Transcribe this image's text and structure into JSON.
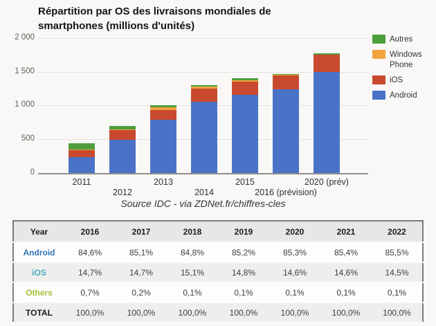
{
  "chart": {
    "title_line1": "Répartition par OS des livraisons mondiales de",
    "title_line2": "smartphones (millions d'unités)",
    "source": "Source IDC - via ZDNet.fr/chiffres-cles",
    "y_ticks": [
      {
        "label": "2 000",
        "value": 2000
      },
      {
        "label": "1 500",
        "value": 1500
      },
      {
        "label": "1 000",
        "value": 1000
      },
      {
        "label": "500",
        "value": 500
      },
      {
        "label": "0",
        "value": 0
      }
    ],
    "x_labels": [
      {
        "label": "2011",
        "row": 0
      },
      {
        "label": "2012",
        "row": 1
      },
      {
        "label": "2013",
        "row": 0
      },
      {
        "label": "2014",
        "row": 1
      },
      {
        "label": "2015",
        "row": 0
      },
      {
        "label": "2016 (prévision)",
        "row": 1
      },
      {
        "label": "2020 (prév)",
        "row": 0
      }
    ],
    "legend": [
      {
        "label": "Autres",
        "color": "#4f9e3d"
      },
      {
        "label": "Windows Phone",
        "color": "#f0a33e"
      },
      {
        "label": "iOS",
        "color": "#c8492e"
      },
      {
        "label": "Android",
        "color": "#4a73c7"
      }
    ]
  },
  "chart_data": {
    "type": "bar",
    "stacked": true,
    "title": "Répartition par OS des livraisons mondiales de smartphones (millions d'unités)",
    "categories": [
      "2011",
      "2012",
      "2013",
      "2014",
      "2015",
      "2016 (prévision)",
      "2020 (prév)"
    ],
    "series": [
      {
        "name": "Android",
        "color": "#4a73c7",
        "values": [
          235,
          495,
          790,
          1060,
          1160,
          1240,
          1500
        ]
      },
      {
        "name": "iOS",
        "color": "#c8492e",
        "values": [
          105,
          140,
          145,
          190,
          190,
          205,
          255
        ]
      },
      {
        "name": "Windows Phone",
        "color": "#f0a33e",
        "values": [
          8,
          10,
          35,
          30,
          25,
          10,
          0
        ]
      },
      {
        "name": "Autres",
        "color": "#4f9e3d",
        "values": [
          95,
          50,
          30,
          20,
          25,
          15,
          15
        ]
      }
    ],
    "xlabel": "",
    "ylabel": "",
    "ylim": [
      0,
      2000
    ],
    "grid": true,
    "legend_position": "right",
    "source": "Source IDC - via ZDNet.fr/chiffres-cles"
  },
  "table": {
    "headers": [
      "Year",
      "2016",
      "2017",
      "2018",
      "2019",
      "2020",
      "2021",
      "2022"
    ],
    "rows": [
      {
        "label": "Android",
        "label_color": "#2e75b6",
        "values": [
          "84,6%",
          "85,1%",
          "84,8%",
          "85,2%",
          "85,3%",
          "85,4%",
          "85,5%"
        ]
      },
      {
        "label": "iOS",
        "label_color": "#4bacc6",
        "values": [
          "14,7%",
          "14,7%",
          "15,1%",
          "14,8%",
          "14,6%",
          "14,6%",
          "14,5%"
        ]
      },
      {
        "label": "Others",
        "label_color": "#a2c037",
        "values": [
          "0,7%",
          "0,2%",
          "0,1%",
          "0,1%",
          "0,1%",
          "0,1%",
          "0,1%"
        ]
      },
      {
        "label": "TOTAL",
        "label_color": "#1a1a1a",
        "values": [
          "100,0%",
          "100,0%",
          "100,0%",
          "100,0%",
          "100,0%",
          "100,0%",
          "100,0%"
        ]
      }
    ]
  }
}
